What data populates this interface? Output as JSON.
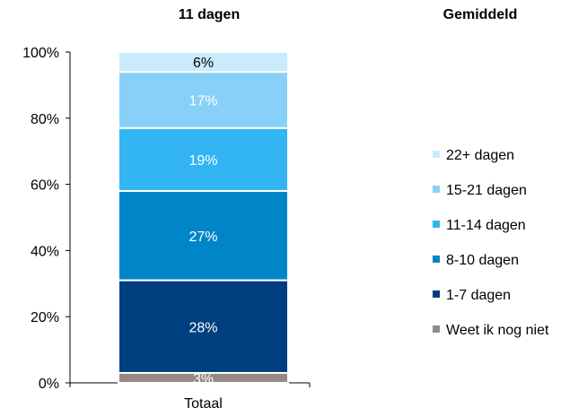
{
  "header": {
    "left": "11 dagen",
    "right": "Gemiddeld"
  },
  "chart_data": {
    "type": "bar",
    "stacked": true,
    "categories": [
      "Totaal"
    ],
    "ylim": [
      0,
      100
    ],
    "ytick_labels": [
      "0%",
      "20%",
      "40%",
      "60%",
      "80%",
      "100%"
    ],
    "legend_position": "right",
    "series": [
      {
        "name": "Weet ik nog niet",
        "values": [
          3
        ],
        "label": "3%",
        "color": "#948a84",
        "label_color": "#ffffff"
      },
      {
        "name": "1-7 dagen",
        "values": [
          28
        ],
        "label": "28%",
        "color": "#003f7f",
        "label_color": "#ffffff"
      },
      {
        "name": "8-10 dagen",
        "values": [
          27
        ],
        "label": "27%",
        "color": "#0086c8",
        "label_color": "#ffffff"
      },
      {
        "name": "11-14 dagen",
        "values": [
          19
        ],
        "label": "19%",
        "color": "#33b5f2",
        "label_color": "#ffffff"
      },
      {
        "name": "15-21 dagen",
        "values": [
          17
        ],
        "label": "17%",
        "color": "#87d0f8",
        "label_color": "#ffffff"
      },
      {
        "name": "22+ dagen",
        "values": [
          6
        ],
        "label": "6%",
        "color": "#c9ebfc",
        "label_color": "#000000"
      }
    ]
  }
}
